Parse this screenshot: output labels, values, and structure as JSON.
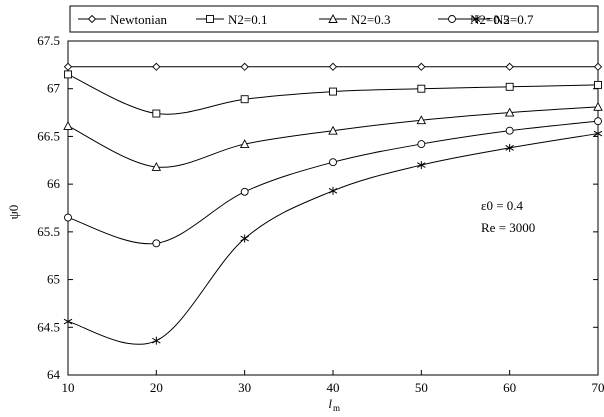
{
  "chart_data": {
    "type": "line",
    "xlabel": "l",
    "xlabel_sub": "m",
    "ylabel": "ψ0",
    "xlim": [
      10,
      70
    ],
    "ylim": [
      64,
      67.5
    ],
    "x_ticks": [
      "10",
      "20",
      "30",
      "40",
      "50",
      "60",
      "70"
    ],
    "y_ticks": [
      "64",
      "64.5",
      "65",
      "65.5",
      "66",
      "66.5",
      "67",
      "67.5"
    ],
    "grid": false,
    "legend_position": "top",
    "annotations": [
      "ε0 = 0.4",
      "Re = 3000"
    ],
    "x": [
      10,
      20,
      30,
      40,
      50,
      60,
      70
    ],
    "series": [
      {
        "name": "Newtonian",
        "marker": "diamond",
        "values": [
          67.23,
          67.23,
          67.23,
          67.23,
          67.23,
          67.23,
          67.23
        ]
      },
      {
        "name": "N2=0.1",
        "marker": "square",
        "values": [
          67.15,
          66.74,
          66.89,
          66.97,
          67.0,
          67.02,
          67.04
        ]
      },
      {
        "name": "N2=0.3",
        "marker": "triangle",
        "values": [
          66.61,
          66.18,
          66.42,
          66.56,
          66.67,
          66.75,
          66.81
        ]
      },
      {
        "name": "N2=0.5",
        "marker": "circle",
        "values": [
          65.65,
          65.38,
          65.92,
          66.23,
          66.42,
          66.56,
          66.66
        ]
      },
      {
        "name": "N2=0.7",
        "marker": "asterisk",
        "values": [
          64.56,
          64.36,
          65.43,
          65.93,
          66.2,
          66.38,
          66.53
        ]
      }
    ]
  }
}
